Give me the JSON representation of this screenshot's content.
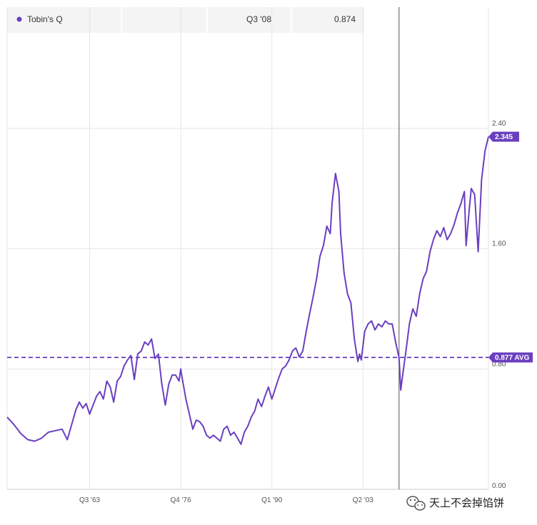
{
  "legend": {
    "series_name": "Tobin's Q",
    "hover_period": "Q3 '08",
    "hover_value": "0.874"
  },
  "watermark": {
    "text": "天上不会掉馅饼"
  },
  "colors": {
    "series": "#6a3fbf",
    "badge": "#6a3fbf",
    "grid": "#e6e6e6",
    "crosshair": "#555555",
    "header_bg": "#f4f4f4"
  },
  "chart_data": {
    "type": "line",
    "title": "",
    "xlabel": "",
    "ylabel": "",
    "x_ticks": [
      {
        "label": "Q3 '63",
        "t": 1963.5
      },
      {
        "label": "Q4 '76",
        "t": 1976.75
      },
      {
        "label": "Q1 '90",
        "t": 1990.0
      },
      {
        "label": "Q2 '03",
        "t": 2003.25
      }
    ],
    "xlim": [
      1951.5,
      2021.5
    ],
    "y_ticks": [
      {
        "label": "0.00",
        "v": 0.0
      },
      {
        "label": "0.80",
        "v": 0.8
      },
      {
        "label": "1.60",
        "v": 1.6
      },
      {
        "label": "2.40",
        "v": 2.4
      }
    ],
    "ylim": [
      0,
      2.4
    ],
    "average": {
      "value": 0.877,
      "label": "0.877 AVG"
    },
    "last_value": {
      "value": 2.345,
      "label": "2.345"
    },
    "crosshair": {
      "period": "Q3 '08",
      "t": 2008.5,
      "value": 0.874
    },
    "grid": true,
    "series": [
      {
        "name": "Tobin's Q",
        "points": [
          [
            1951.5,
            0.48
          ],
          [
            1952.5,
            0.43
          ],
          [
            1953.5,
            0.37
          ],
          [
            1954.5,
            0.33
          ],
          [
            1955.5,
            0.32
          ],
          [
            1956.5,
            0.34
          ],
          [
            1957.5,
            0.38
          ],
          [
            1958.5,
            0.39
          ],
          [
            1959.5,
            0.4
          ],
          [
            1960.25,
            0.33
          ],
          [
            1961.0,
            0.45
          ],
          [
            1961.5,
            0.53
          ],
          [
            1962.0,
            0.58
          ],
          [
            1962.5,
            0.54
          ],
          [
            1963.0,
            0.57
          ],
          [
            1963.5,
            0.5
          ],
          [
            1964.5,
            0.62
          ],
          [
            1965.0,
            0.65
          ],
          [
            1965.5,
            0.6
          ],
          [
            1966.0,
            0.72
          ],
          [
            1966.5,
            0.68
          ],
          [
            1967.0,
            0.58
          ],
          [
            1967.5,
            0.72
          ],
          [
            1968.0,
            0.75
          ],
          [
            1968.5,
            0.82
          ],
          [
            1969.0,
            0.86
          ],
          [
            1969.5,
            0.89
          ],
          [
            1970.0,
            0.73
          ],
          [
            1970.5,
            0.9
          ],
          [
            1971.0,
            0.92
          ],
          [
            1971.5,
            0.98
          ],
          [
            1972.0,
            0.96
          ],
          [
            1972.5,
            1.0
          ],
          [
            1973.0,
            0.87
          ],
          [
            1973.5,
            0.9
          ],
          [
            1974.0,
            0.7
          ],
          [
            1974.5,
            0.56
          ],
          [
            1975.0,
            0.7
          ],
          [
            1975.5,
            0.76
          ],
          [
            1976.0,
            0.76
          ],
          [
            1976.5,
            0.72
          ],
          [
            1976.75,
            0.8
          ],
          [
            1977.0,
            0.73
          ],
          [
            1977.5,
            0.6
          ],
          [
            1978.0,
            0.5
          ],
          [
            1978.5,
            0.4
          ],
          [
            1979.0,
            0.46
          ],
          [
            1979.5,
            0.45
          ],
          [
            1980.0,
            0.42
          ],
          [
            1980.5,
            0.36
          ],
          [
            1981.0,
            0.34
          ],
          [
            1981.5,
            0.36
          ],
          [
            1982.0,
            0.34
          ],
          [
            1982.5,
            0.32
          ],
          [
            1983.0,
            0.4
          ],
          [
            1983.5,
            0.42
          ],
          [
            1984.0,
            0.36
          ],
          [
            1984.5,
            0.38
          ],
          [
            1985.0,
            0.34
          ],
          [
            1985.5,
            0.3
          ],
          [
            1986.0,
            0.38
          ],
          [
            1986.5,
            0.42
          ],
          [
            1987.0,
            0.48
          ],
          [
            1987.5,
            0.52
          ],
          [
            1988.0,
            0.6
          ],
          [
            1988.5,
            0.55
          ],
          [
            1989.0,
            0.62
          ],
          [
            1989.5,
            0.68
          ],
          [
            1990.0,
            0.6
          ],
          [
            1990.5,
            0.67
          ],
          [
            1991.0,
            0.74
          ],
          [
            1991.5,
            0.8
          ],
          [
            1992.0,
            0.82
          ],
          [
            1992.5,
            0.86
          ],
          [
            1993.0,
            0.92
          ],
          [
            1993.5,
            0.94
          ],
          [
            1994.0,
            0.88
          ],
          [
            1994.5,
            0.92
          ],
          [
            1995.0,
            1.05
          ],
          [
            1995.5,
            1.17
          ],
          [
            1996.0,
            1.28
          ],
          [
            1996.5,
            1.4
          ],
          [
            1997.0,
            1.55
          ],
          [
            1997.5,
            1.62
          ],
          [
            1998.0,
            1.75
          ],
          [
            1998.5,
            1.7
          ],
          [
            1998.75,
            1.9
          ],
          [
            1999.25,
            2.1
          ],
          [
            1999.75,
            1.98
          ],
          [
            2000.0,
            1.7
          ],
          [
            2000.5,
            1.44
          ],
          [
            2001.0,
            1.3
          ],
          [
            2001.5,
            1.24
          ],
          [
            2002.0,
            1.0
          ],
          [
            2002.5,
            0.85
          ],
          [
            2002.75,
            0.9
          ],
          [
            2003.0,
            0.86
          ],
          [
            2003.5,
            1.05
          ],
          [
            2004.0,
            1.1
          ],
          [
            2004.5,
            1.12
          ],
          [
            2005.0,
            1.06
          ],
          [
            2005.5,
            1.1
          ],
          [
            2006.0,
            1.08
          ],
          [
            2006.5,
            1.12
          ],
          [
            2007.0,
            1.1
          ],
          [
            2007.5,
            1.1
          ],
          [
            2008.0,
            0.98
          ],
          [
            2008.5,
            0.874
          ],
          [
            2008.75,
            0.66
          ],
          [
            2009.0,
            0.75
          ],
          [
            2009.5,
            0.92
          ],
          [
            2010.0,
            1.1
          ],
          [
            2010.5,
            1.2
          ],
          [
            2011.0,
            1.15
          ],
          [
            2011.5,
            1.3
          ],
          [
            2012.0,
            1.4
          ],
          [
            2012.5,
            1.45
          ],
          [
            2013.0,
            1.58
          ],
          [
            2013.5,
            1.66
          ],
          [
            2014.0,
            1.72
          ],
          [
            2014.5,
            1.68
          ],
          [
            2015.0,
            1.74
          ],
          [
            2015.5,
            1.66
          ],
          [
            2016.0,
            1.7
          ],
          [
            2016.5,
            1.76
          ],
          [
            2017.0,
            1.84
          ],
          [
            2017.5,
            1.9
          ],
          [
            2018.0,
            1.98
          ],
          [
            2018.25,
            1.62
          ],
          [
            2018.75,
            1.88
          ],
          [
            2019.0,
            2.0
          ],
          [
            2019.5,
            1.96
          ],
          [
            2020.0,
            1.58
          ],
          [
            2020.5,
            2.06
          ],
          [
            2021.0,
            2.25
          ],
          [
            2021.5,
            2.345
          ]
        ]
      }
    ]
  }
}
